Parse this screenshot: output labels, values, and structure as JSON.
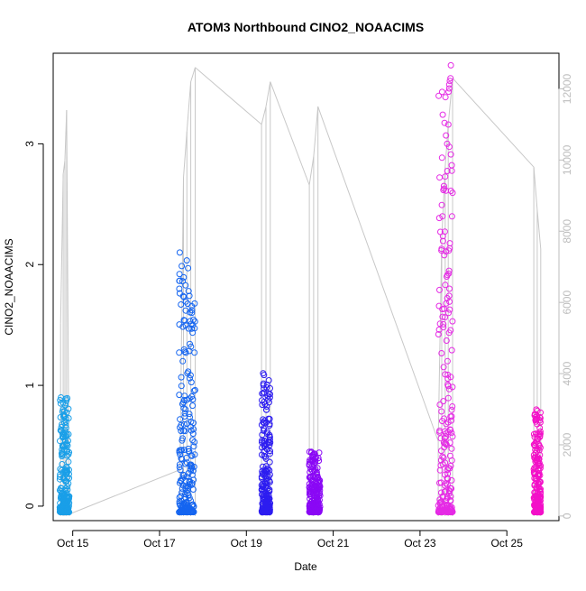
{
  "chart_data": {
    "type": "scatter",
    "title": "ATOM3 Northbound CINO2_NOAACIMS",
    "xlabel": "Date",
    "ylabel": "CINO2_NOAACIMS",
    "y2label": "",
    "x_ticks": [
      "Oct 15",
      "Oct 17",
      "Oct 19",
      "Oct 21",
      "Oct 23",
      "Oct 25"
    ],
    "x_tick_days": [
      15,
      17,
      19,
      21,
      23,
      25
    ],
    "xlim": [
      14.55,
      26.2
    ],
    "ylim": [
      -0.12,
      3.75
    ],
    "y_ticks": [
      0,
      1,
      2,
      3
    ],
    "y2lim": [
      -130,
      13000
    ],
    "y2_ticks": [
      0,
      2000,
      4000,
      6000,
      8000,
      10000,
      12000
    ],
    "grid": false,
    "secondary_series": {
      "name": "",
      "color": "#c8c8c8",
      "style": "line",
      "x": [
        14.72,
        14.78,
        14.82,
        14.86,
        14.92,
        17.47,
        17.55,
        17.63,
        17.72,
        17.82,
        19.35,
        19.45,
        19.55,
        20.45,
        20.55,
        20.65,
        23.42,
        23.5,
        23.58,
        23.65,
        23.75,
        25.62,
        25.7,
        25.78
      ],
      "y": [
        5400,
        9600,
        10000,
        11400,
        50,
        1300,
        9500,
        10800,
        12200,
        12600,
        11000,
        11500,
        12200,
        9300,
        10100,
        11500,
        2100,
        7800,
        9800,
        11000,
        12300,
        9800,
        8600,
        7500
      ]
    },
    "series": [
      {
        "name": "",
        "color": "#1a9fe8",
        "x_range": [
          14.7,
          14.92
        ],
        "y": [
          0.0,
          0.15,
          0.3,
          0.45,
          0.6,
          0.75,
          0.9
        ]
      },
      {
        "name": "",
        "color": "#1565f0",
        "x_range": [
          17.45,
          17.82
        ],
        "y": [
          0.0,
          0.3,
          0.6,
          1.2,
          1.5,
          1.8,
          2.1
        ]
      },
      {
        "name": "",
        "color": "#2d1df0",
        "x_range": [
          19.35,
          19.55
        ],
        "y": [
          0.0,
          0.3,
          0.6,
          0.9,
          1.1
        ]
      },
      {
        "name": "",
        "color": "#8a08f5",
        "x_range": [
          20.45,
          20.7
        ],
        "y": [
          0.0,
          0.2,
          0.35,
          0.45
        ]
      },
      {
        "name": "",
        "color": "#e52ae5",
        "x_range": [
          23.42,
          23.75
        ],
        "y": [
          0.0,
          0.6,
          1.2,
          1.8,
          2.4,
          3.0,
          3.65
        ]
      },
      {
        "name": "",
        "color": "#f310c8",
        "x_range": [
          25.62,
          25.78
        ],
        "y": [
          0.0,
          0.3,
          0.6,
          0.8
        ]
      }
    ]
  }
}
